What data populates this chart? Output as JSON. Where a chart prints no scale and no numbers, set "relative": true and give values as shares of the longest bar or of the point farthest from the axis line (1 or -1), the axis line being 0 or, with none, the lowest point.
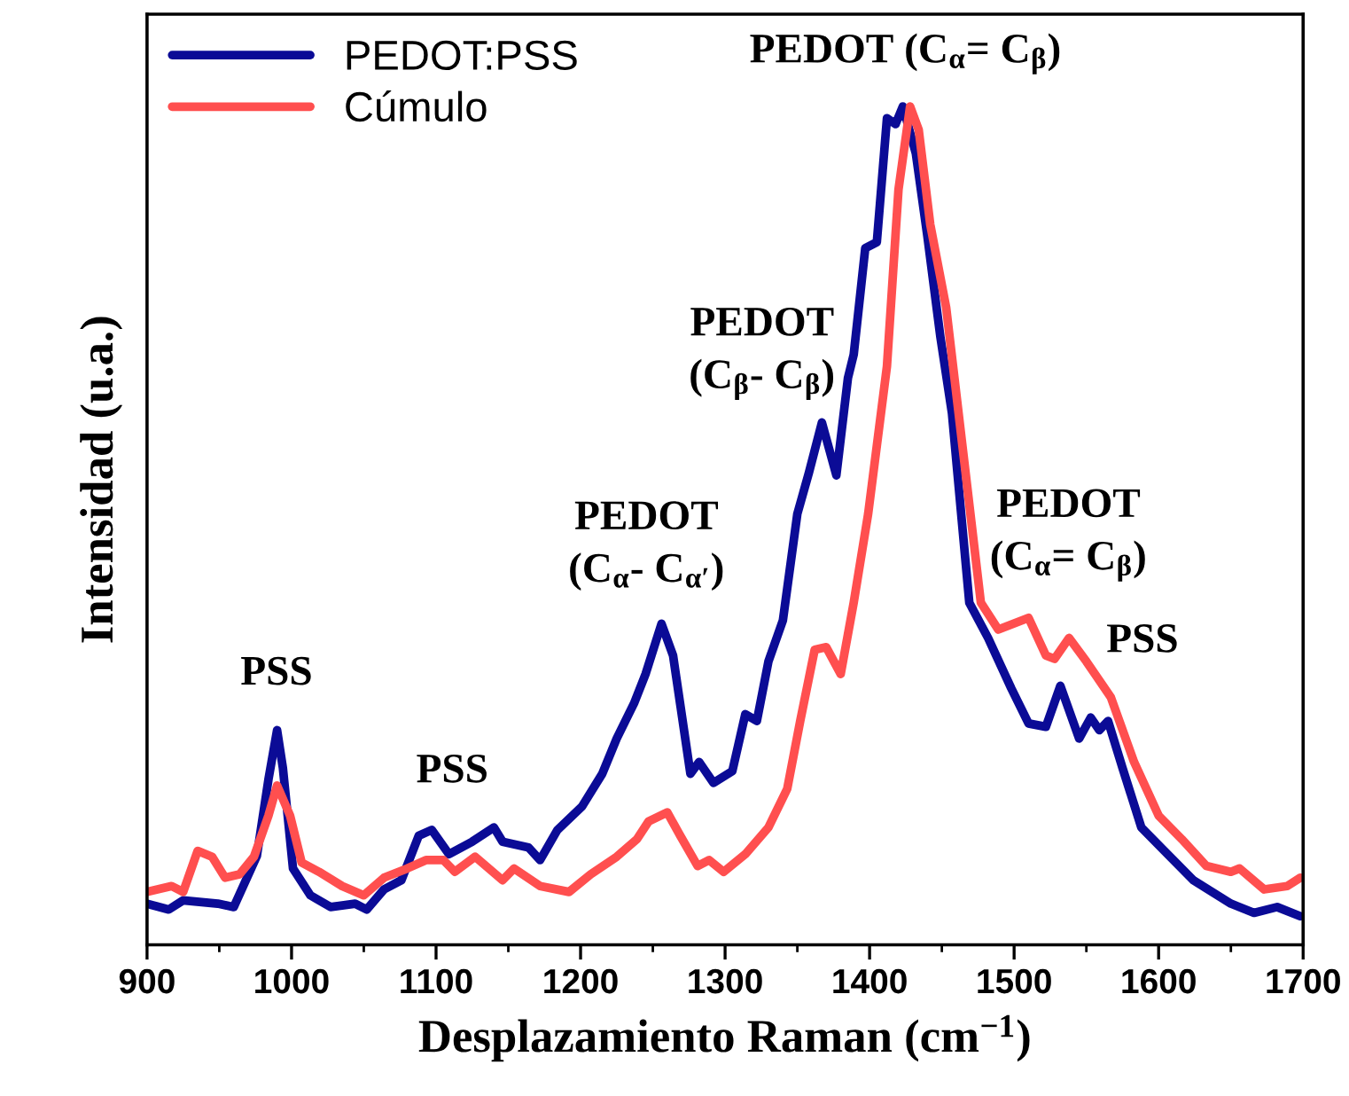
{
  "chart_data": {
    "type": "line",
    "relative": true,
    "xlabel": "Desplazamiento Raman (cm$^{−1}$)",
    "ylabel": "Intensidad (u.a.)",
    "xlim": [
      900,
      1700
    ],
    "xticks": [
      900,
      1000,
      1100,
      1200,
      1300,
      1400,
      1500,
      1600,
      1700
    ],
    "grid": false,
    "legend": "top left",
    "line_style": "solid",
    "marker": "none",
    "series": [
      {
        "name": "PEDOT:PSS",
        "color": "#0b0b96",
        "x": [
          900,
          915,
          925,
          949,
          960,
          976,
          984,
          990,
          994,
          1001,
          1013,
          1027,
          1044,
          1052,
          1064,
          1076,
          1088,
          1097,
          1109,
          1125,
          1140,
          1146,
          1164,
          1172,
          1184,
          1201,
          1215,
          1225,
          1237,
          1245,
          1256,
          1264,
          1276,
          1282,
          1292,
          1305,
          1314,
          1322,
          1330,
          1340,
          1350,
          1358,
          1367,
          1377,
          1385,
          1389,
          1397,
          1405,
          1412,
          1418,
          1423,
          1432,
          1440,
          1449,
          1457,
          1469,
          1482,
          1498,
          1510,
          1522,
          1532,
          1545,
          1553,
          1559,
          1565,
          1575,
          1588,
          1604,
          1624,
          1637,
          1650,
          1666,
          1682,
          1698
        ],
        "values": [
          0.049,
          0.042,
          0.053,
          0.049,
          0.045,
          0.106,
          0.197,
          0.256,
          0.211,
          0.091,
          0.059,
          0.045,
          0.049,
          0.042,
          0.066,
          0.077,
          0.13,
          0.137,
          0.108,
          0.123,
          0.14,
          0.123,
          0.116,
          0.101,
          0.137,
          0.165,
          0.204,
          0.246,
          0.288,
          0.323,
          0.383,
          0.345,
          0.204,
          0.218,
          0.193,
          0.207,
          0.275,
          0.267,
          0.338,
          0.387,
          0.514,
          0.563,
          0.623,
          0.56,
          0.676,
          0.704,
          0.831,
          0.838,
          0.986,
          0.979,
          1.0,
          0.944,
          0.845,
          0.725,
          0.634,
          0.408,
          0.366,
          0.306,
          0.264,
          0.26,
          0.309,
          0.246,
          0.271,
          0.256,
          0.267,
          0.211,
          0.14,
          0.112,
          0.077,
          0.063,
          0.049,
          0.038,
          0.045,
          0.034
        ]
      },
      {
        "name": "Cúmulo",
        "color": "#ff4f4f",
        "x": [
          900,
          917,
          925,
          935,
          945,
          954,
          964,
          974,
          984,
          990,
          999,
          1007,
          1019,
          1035,
          1050,
          1064,
          1080,
          1093,
          1105,
          1113,
          1127,
          1146,
          1154,
          1172,
          1192,
          1207,
          1225,
          1239,
          1247,
          1260,
          1268,
          1281,
          1289,
          1299,
          1314,
          1330,
          1343,
          1352,
          1362,
          1370,
          1380,
          1389,
          1399,
          1412,
          1420,
          1428,
          1434,
          1442,
          1453,
          1465,
          1477,
          1489,
          1510,
          1522,
          1528,
          1538,
          1550,
          1567,
          1583,
          1600,
          1616,
          1633,
          1650,
          1656,
          1673,
          1689,
          1698
        ],
        "values": [
          0.063,
          0.07,
          0.063,
          0.112,
          0.105,
          0.08,
          0.084,
          0.105,
          0.154,
          0.19,
          0.154,
          0.098,
          0.087,
          0.07,
          0.059,
          0.08,
          0.091,
          0.101,
          0.101,
          0.087,
          0.105,
          0.077,
          0.091,
          0.07,
          0.063,
          0.084,
          0.105,
          0.126,
          0.147,
          0.158,
          0.133,
          0.094,
          0.101,
          0.087,
          0.108,
          0.14,
          0.186,
          0.267,
          0.352,
          0.355,
          0.323,
          0.408,
          0.514,
          0.69,
          0.901,
          1.0,
          0.972,
          0.859,
          0.76,
          0.584,
          0.408,
          0.376,
          0.39,
          0.345,
          0.341,
          0.366,
          0.338,
          0.295,
          0.218,
          0.154,
          0.126,
          0.094,
          0.087,
          0.091,
          0.066,
          0.07,
          0.08
        ]
      }
    ],
    "annotations": [
      "PSS",
      "PSS",
      "PEDOT\n(C$_{α}$- C$_{α′}$)",
      "PEDOT\n(C$_{β}$- C$_{β}$)",
      "PEDOT (C$_{α}$= C$_{β}$)",
      "PEDOT\n(C$_{α}$= C$_{β}$)",
      "PSS"
    ]
  }
}
